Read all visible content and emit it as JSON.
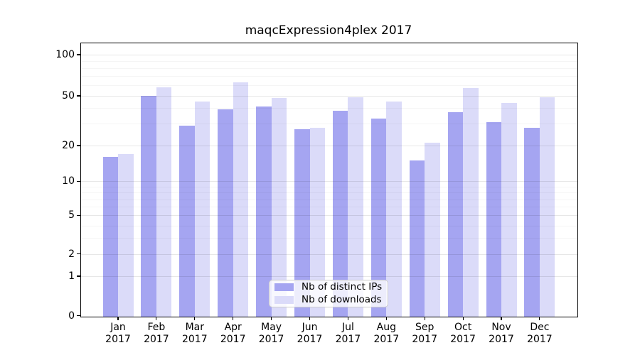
{
  "chart_data": {
    "type": "bar",
    "title": "maqcExpression4plex 2017",
    "categories": [
      "Jan",
      "Feb",
      "Mar",
      "Apr",
      "May",
      "Jun",
      "Jul",
      "Aug",
      "Sep",
      "Oct",
      "Nov",
      "Dec"
    ],
    "x_sublabel": "2017",
    "series": [
      {
        "name": "Nb of distinct IPs",
        "color": "#a5a5f1",
        "values": [
          16,
          50,
          29,
          39,
          41,
          27,
          38,
          33,
          15,
          37,
          31,
          28
        ]
      },
      {
        "name": "Nb of downloads",
        "color": "#dbdbf9",
        "values": [
          17,
          58,
          45,
          63,
          48,
          28,
          49,
          45,
          21,
          57,
          44,
          49
        ]
      }
    ],
    "yscale": "log1p",
    "ylim": [
      0,
      120
    ],
    "yticks_major": [
      0,
      1,
      2,
      5,
      10,
      20,
      50,
      100
    ],
    "ytick_labels": [
      "0",
      "1",
      "2",
      "5",
      "10",
      "20",
      "50",
      "100"
    ],
    "yticks_minor": [
      3,
      4,
      6,
      7,
      8,
      9,
      30,
      40,
      60,
      70,
      80,
      90
    ],
    "grid": "horizontal-major-and-minor",
    "legend_position": "lower center",
    "colors": {
      "bar_ips": "#a5a5f1",
      "bar_downloads": "#dbdbf9",
      "axis": "#000000",
      "grid_major": "#e8e8e8",
      "grid_minor": "#f5f5f5",
      "legend_border": "#cccccc",
      "background": "#ffffff",
      "text": "#000000"
    }
  }
}
